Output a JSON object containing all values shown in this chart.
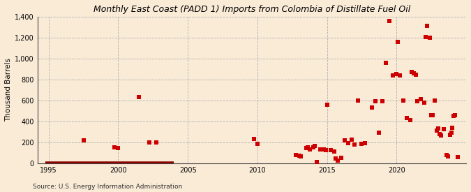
{
  "title": "Monthly East Coast (PADD 1) Imports from Colombia of Distillate Fuel Oil",
  "ylabel": "Thousand Barrels",
  "source": "Source: U.S. Energy Information Administration",
  "background_color": "#faebd7",
  "plot_bg_color": "#faebd7",
  "marker_color": "#cc0000",
  "line_color": "#8b0000",
  "ylim": [
    0,
    1400
  ],
  "yticks": [
    0,
    200,
    400,
    600,
    800,
    1000,
    1200,
    1400
  ],
  "ytick_labels": [
    "0",
    "200",
    "400",
    "600",
    "800",
    "1,000",
    "1,200",
    "1,400"
  ],
  "xticks": [
    1995,
    2000,
    2005,
    2010,
    2015,
    2020
  ],
  "xlim": [
    1994.2,
    2025.0
  ],
  "data_points": [
    [
      1997.5,
      220
    ],
    [
      1999.75,
      155
    ],
    [
      2000.0,
      145
    ],
    [
      2001.5,
      635
    ],
    [
      2002.25,
      200
    ],
    [
      2002.75,
      200
    ],
    [
      2009.75,
      235
    ],
    [
      2010.0,
      185
    ],
    [
      2012.75,
      80
    ],
    [
      2013.0,
      75
    ],
    [
      2013.1,
      65
    ],
    [
      2013.5,
      145
    ],
    [
      2013.6,
      150
    ],
    [
      2013.75,
      130
    ],
    [
      2014.0,
      155
    ],
    [
      2014.1,
      165
    ],
    [
      2014.25,
      15
    ],
    [
      2014.5,
      130
    ],
    [
      2014.75,
      130
    ],
    [
      2014.9,
      125
    ],
    [
      2015.0,
      560
    ],
    [
      2015.25,
      125
    ],
    [
      2015.5,
      110
    ],
    [
      2015.6,
      45
    ],
    [
      2015.75,
      25
    ],
    [
      2016.0,
      55
    ],
    [
      2016.25,
      220
    ],
    [
      2016.5,
      195
    ],
    [
      2016.75,
      225
    ],
    [
      2017.0,
      180
    ],
    [
      2017.25,
      600
    ],
    [
      2017.5,
      185
    ],
    [
      2017.75,
      195
    ],
    [
      2018.25,
      530
    ],
    [
      2018.5,
      590
    ],
    [
      2018.75,
      295
    ],
    [
      2019.0,
      595
    ],
    [
      2019.25,
      960
    ],
    [
      2019.5,
      1360
    ],
    [
      2019.75,
      840
    ],
    [
      2020.0,
      850
    ],
    [
      2020.1,
      1160
    ],
    [
      2020.25,
      840
    ],
    [
      2020.5,
      600
    ],
    [
      2020.75,
      430
    ],
    [
      2021.0,
      415
    ],
    [
      2021.1,
      870
    ],
    [
      2021.25,
      860
    ],
    [
      2021.4,
      845
    ],
    [
      2021.5,
      590
    ],
    [
      2021.75,
      610
    ],
    [
      2022.0,
      580
    ],
    [
      2022.1,
      1205
    ],
    [
      2022.2,
      1315
    ],
    [
      2022.4,
      1200
    ],
    [
      2022.5,
      460
    ],
    [
      2022.6,
      460
    ],
    [
      2022.75,
      600
    ],
    [
      2022.9,
      310
    ],
    [
      2023.0,
      330
    ],
    [
      2023.1,
      280
    ],
    [
      2023.2,
      265
    ],
    [
      2023.4,
      325
    ],
    [
      2023.6,
      80
    ],
    [
      2023.7,
      68
    ],
    [
      2023.85,
      270
    ],
    [
      2023.95,
      290
    ],
    [
      2024.0,
      340
    ],
    [
      2024.1,
      455
    ],
    [
      2024.2,
      460
    ],
    [
      2024.4,
      60
    ]
  ],
  "line_x_start": 1994.75,
  "line_x_end": 2004.0
}
